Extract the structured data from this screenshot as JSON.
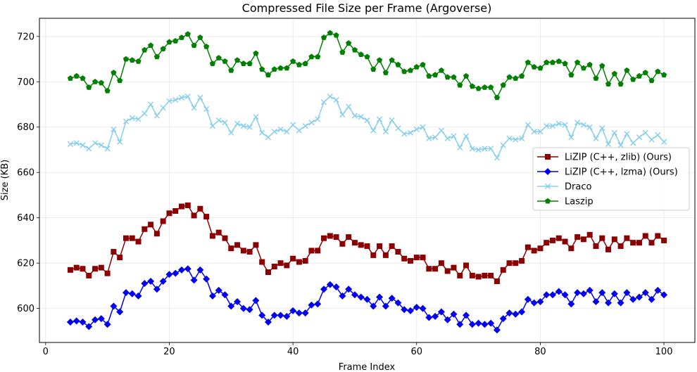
{
  "chart_data": {
    "type": "line",
    "title": "Compressed File Size per Frame (Argoverse)",
    "xlabel": "Frame Index",
    "ylabel": "Size (KB)",
    "xlim": [
      -1,
      105
    ],
    "ylim": [
      585,
      728
    ],
    "xticks": [
      0,
      20,
      40,
      60,
      80,
      100
    ],
    "yticks": [
      600,
      620,
      640,
      660,
      680,
      700,
      720
    ],
    "grid": true,
    "legend_position": "center-right",
    "x": [
      4,
      5,
      6,
      7,
      8,
      9,
      10,
      11,
      12,
      13,
      14,
      15,
      16,
      17,
      18,
      19,
      20,
      21,
      22,
      23,
      24,
      25,
      26,
      27,
      28,
      29,
      30,
      31,
      32,
      33,
      34,
      35,
      36,
      37,
      38,
      39,
      40,
      41,
      42,
      43,
      44,
      45,
      46,
      47,
      48,
      49,
      50,
      51,
      52,
      53,
      54,
      55,
      56,
      57,
      58,
      59,
      60,
      61,
      62,
      63,
      64,
      65,
      66,
      67,
      68,
      69,
      70,
      71,
      72,
      73,
      74,
      75,
      76,
      77,
      78,
      79,
      80,
      81,
      82,
      83,
      84,
      85,
      86,
      87,
      88,
      89,
      90,
      91,
      92,
      93,
      94,
      95,
      96,
      97,
      98,
      99,
      100
    ],
    "series": [
      {
        "name": "LiZIP (C++, zlib) (Ours)",
        "color": "#8b0000",
        "marker": "square",
        "values": [
          617,
          618,
          617.5,
          614.5,
          617.5,
          618,
          615.5,
          625,
          622.5,
          631,
          631,
          629.5,
          635,
          637,
          633,
          638.5,
          642,
          643,
          645,
          645.5,
          641,
          644,
          640.5,
          632,
          633.5,
          631,
          626.5,
          628,
          625.5,
          625,
          628,
          620.5,
          616,
          618.5,
          620,
          619,
          622,
          620.5,
          621,
          625.5,
          625.5,
          631,
          632,
          631.5,
          628.5,
          631.5,
          629,
          628,
          627.5,
          623.5,
          627.5,
          623.5,
          627.5,
          625,
          622,
          621,
          622.5,
          622.5,
          617.5,
          617.5,
          620,
          616.5,
          618,
          614.5,
          619,
          614.5,
          614,
          614.5,
          614.5,
          612,
          617,
          620,
          620,
          621,
          627,
          625.5,
          626.5,
          629,
          630,
          631,
          629.5,
          626.5,
          631.5,
          630.5,
          632.5,
          627.5,
          631,
          626,
          630.5,
          627.5,
          631,
          629,
          629,
          632,
          629,
          632,
          630
        ]
      },
      {
        "name": "LiZIP (C++, lzma) (Ours)",
        "color": "#0000ee",
        "marker": "diamond",
        "values": [
          594,
          594.5,
          594,
          592,
          595,
          595.5,
          593,
          601,
          598.5,
          607,
          606.5,
          605.5,
          611,
          612,
          608.5,
          612,
          615,
          615.5,
          617,
          617.5,
          612.5,
          617,
          613,
          605.5,
          608,
          606,
          601,
          603,
          600,
          599.5,
          603.5,
          597,
          594,
          597,
          597,
          596.5,
          599,
          598,
          598,
          601.5,
          602,
          608.5,
          610.5,
          609.5,
          605.5,
          608.5,
          606,
          605,
          604,
          601,
          605,
          601,
          604.5,
          602.5,
          599.5,
          599,
          600.5,
          600,
          596,
          596.5,
          598.5,
          595,
          597.5,
          593,
          597,
          593,
          593.5,
          593,
          593.5,
          590.5,
          595.5,
          598,
          597.5,
          598.5,
          604,
          602.5,
          603,
          606,
          606,
          607.5,
          606,
          602,
          607,
          606.5,
          608,
          603,
          607,
          602.5,
          606.5,
          602.5,
          607,
          604,
          605,
          607,
          604,
          608,
          606
        ]
      },
      {
        "name": "Draco",
        "color": "#87ceeb",
        "marker": "x",
        "values": [
          672.5,
          673,
          672,
          670.5,
          673,
          672,
          670.5,
          679,
          673.5,
          682.5,
          684,
          683.5,
          686,
          690,
          685,
          688.5,
          691.5,
          692,
          693,
          693.5,
          688.5,
          693,
          688,
          680.5,
          683,
          682,
          677.5,
          681.5,
          680.5,
          680,
          684.5,
          677.5,
          675.5,
          678,
          679,
          678,
          681,
          678.5,
          680.5,
          682,
          683.5,
          691,
          693.5,
          692,
          685.5,
          689,
          685,
          684.5,
          683,
          678.5,
          683.5,
          678,
          683,
          679.5,
          677,
          677.5,
          679,
          680,
          675,
          675.5,
          678.5,
          675,
          676,
          671,
          676,
          670.5,
          670,
          670.5,
          670.5,
          666.5,
          672,
          675,
          674.5,
          675,
          681,
          678,
          678,
          680.5,
          680.5,
          681.5,
          681,
          675.5,
          682,
          681,
          680,
          675,
          679.5,
          672.5,
          677.5,
          672,
          677,
          673,
          675.5,
          677.5,
          674.5,
          676.5,
          673.5
        ]
      },
      {
        "name": "Laszip",
        "color": "#008000",
        "marker": "pentagon",
        "values": [
          701.5,
          702.5,
          701.5,
          697.5,
          700,
          699.5,
          696,
          704,
          700.5,
          710,
          709.5,
          709,
          714,
          716,
          711,
          714.5,
          717.5,
          718,
          719.5,
          721,
          716,
          719.5,
          715.5,
          708,
          710.5,
          709,
          705,
          709.5,
          708,
          708,
          712.5,
          705.5,
          703,
          705.5,
          706,
          706,
          709,
          707.5,
          708,
          711,
          711,
          719.5,
          721.5,
          720.5,
          713,
          717,
          714,
          712,
          711,
          705.5,
          709.5,
          704,
          709.5,
          707.5,
          704.5,
          705,
          706.5,
          707.5,
          702.5,
          703,
          705,
          702,
          702,
          698.5,
          702.5,
          698,
          697,
          697.5,
          697.5,
          693,
          698.5,
          702,
          701.5,
          702.5,
          708.5,
          706.5,
          706,
          708.5,
          708.5,
          709,
          708,
          703,
          708.5,
          706,
          707.5,
          701.5,
          707,
          699,
          703.5,
          699,
          705,
          701,
          702.5,
          704,
          700.5,
          704.5,
          703
        ]
      }
    ]
  }
}
